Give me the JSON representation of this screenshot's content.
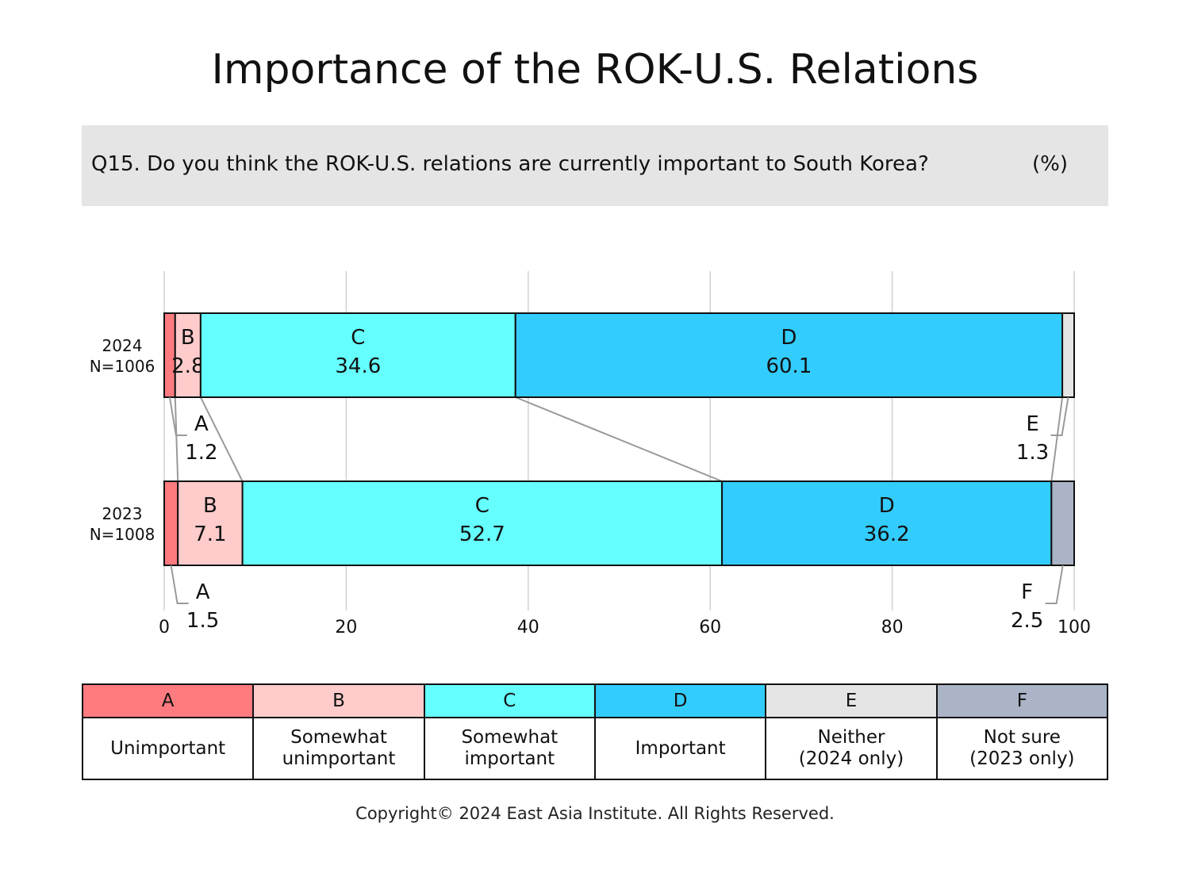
{
  "title": "Importance of the ROK-U.S. Relations",
  "question": "Q15. Do you think the ROK-U.S. relations are currently important to South Korea?",
  "unit": "(%)",
  "legend": [
    {
      "key": "A",
      "label_lines": [
        "Unimportant"
      ],
      "color": "#ff7b7f"
    },
    {
      "key": "B",
      "label_lines": [
        "Somewhat",
        "unimportant"
      ],
      "color": "#ffcbcb"
    },
    {
      "key": "C",
      "label_lines": [
        "Somewhat",
        "important"
      ],
      "color": "#66ffff"
    },
    {
      "key": "D",
      "label_lines": [
        "Important"
      ],
      "color": "#33ccff"
    },
    {
      "key": "E",
      "label_lines": [
        "Neither",
        "(2024 only)"
      ],
      "color": "#e6e5e6"
    },
    {
      "key": "F",
      "label_lines": [
        "Not sure",
        "(2023 only)"
      ],
      "color": "#aab4c6"
    }
  ],
  "copyright": "Copyright© 2024 East Asia Institute. All Rights Reserved.",
  "chart_data": {
    "type": "bar",
    "orientation": "horizontal",
    "stacked": true,
    "xlim": [
      0,
      100
    ],
    "xticks": [
      0,
      20,
      40,
      60,
      80,
      100
    ],
    "grid": true,
    "rows": [
      {
        "year": "2024",
        "n": "N=1006",
        "segments": [
          {
            "key": "A",
            "value": 1.2,
            "label": "1.2",
            "outside": true
          },
          {
            "key": "B",
            "value": 2.8,
            "label": "2.8",
            "outside": false
          },
          {
            "key": "C",
            "value": 34.6,
            "label": "34.6",
            "outside": false
          },
          {
            "key": "D",
            "value": 60.1,
            "label": "60.1",
            "outside": false
          },
          {
            "key": "E",
            "value": 1.3,
            "label": "1.3",
            "outside": true
          }
        ]
      },
      {
        "year": "2023",
        "n": "N=1008",
        "segments": [
          {
            "key": "A",
            "value": 1.5,
            "label": "1.5",
            "outside": true
          },
          {
            "key": "B",
            "value": 7.1,
            "label": "7.1",
            "outside": false
          },
          {
            "key": "C",
            "value": 52.7,
            "label": "52.7",
            "outside": false
          },
          {
            "key": "D",
            "value": 36.2,
            "label": "36.2",
            "outside": false
          },
          {
            "key": "F",
            "value": 2.5,
            "label": "2.5",
            "outside": true
          }
        ]
      }
    ]
  }
}
